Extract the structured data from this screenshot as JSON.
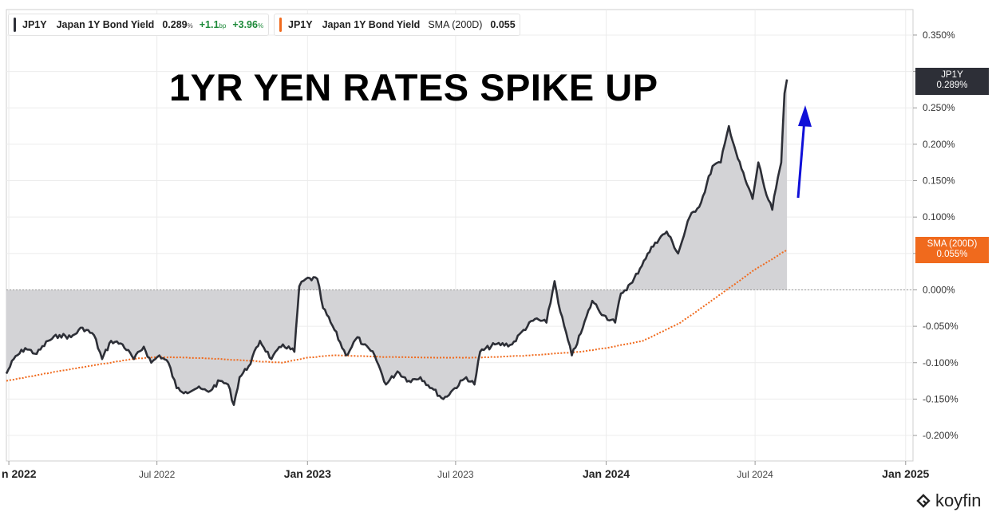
{
  "legend": {
    "series1": {
      "ticker": "JP1Y",
      "name": "Japan 1Y Bond Yield",
      "value": "0.289",
      "value_unit": "%",
      "change_bp": "+1.1",
      "change_bp_unit": "bp",
      "change_pct": "+3.96",
      "change_pct_unit": "%",
      "color": "#2d2f37"
    },
    "series2": {
      "ticker": "JP1Y",
      "name": "Japan 1Y Bond Yield",
      "indicator": "SMA (200D)",
      "value": "0.055",
      "color": "#f06a1d"
    }
  },
  "annotation": {
    "headline": "1YR YEN RATES SPIKE UP",
    "arrow_color": "#1010d8"
  },
  "price_tags": {
    "jp1y": {
      "label": "JP1Y",
      "value": "0.289%"
    },
    "sma": {
      "label": "SMA (200D)",
      "value": "0.055%"
    }
  },
  "brand": {
    "name": "koyfin"
  },
  "chart_data": {
    "type": "line",
    "x_ticks": [
      "n 2022",
      "Jul 2022",
      "Jan 2023",
      "Jul 2023",
      "Jan 2024",
      "Jul 2024",
      "Jan 2025"
    ],
    "x_ticks_bold": [
      true,
      false,
      true,
      false,
      true,
      false,
      true
    ],
    "x_tick_dates": [
      "2022-01-01",
      "2022-07-01",
      "2023-01-01",
      "2023-07-01",
      "2024-01-01",
      "2024-07-01",
      "2025-01-01"
    ],
    "xlim": [
      "2021-12-29",
      "2025-01-10"
    ],
    "y_ticks": [
      "0.350%",
      "0.300%",
      "0.250%",
      "0.200%",
      "0.150%",
      "0.100%",
      "0.050%",
      "0.000%",
      "-0.050%",
      "-0.100%",
      "-0.150%",
      "-0.200%"
    ],
    "y_tick_values": [
      0.35,
      0.3,
      0.25,
      0.2,
      0.15,
      0.1,
      0.05,
      0.0,
      -0.05,
      -0.1,
      -0.15,
      -0.2
    ],
    "ylim": [
      -0.235,
      0.385
    ],
    "grid": true,
    "area_fill_to_zero": true,
    "series": [
      {
        "name": "Japan 1Y Bond Yield",
        "color": "#2d2f37",
        "style": "solid",
        "points": [
          [
            "2021-12-29",
            -0.115
          ],
          [
            "2022-01-07",
            -0.095
          ],
          [
            "2022-01-21",
            -0.08
          ],
          [
            "2022-02-04",
            -0.088
          ],
          [
            "2022-02-18",
            -0.07
          ],
          [
            "2022-03-04",
            -0.062
          ],
          [
            "2022-03-18",
            -0.065
          ],
          [
            "2022-04-01",
            -0.052
          ],
          [
            "2022-04-15",
            -0.062
          ],
          [
            "2022-04-25",
            -0.095
          ],
          [
            "2022-05-06",
            -0.07
          ],
          [
            "2022-05-20",
            -0.075
          ],
          [
            "2022-06-03",
            -0.095
          ],
          [
            "2022-06-15",
            -0.078
          ],
          [
            "2022-06-24",
            -0.1
          ],
          [
            "2022-07-04",
            -0.09
          ],
          [
            "2022-07-15",
            -0.1
          ],
          [
            "2022-07-25",
            -0.135
          ],
          [
            "2022-08-05",
            -0.14
          ],
          [
            "2022-08-19",
            -0.135
          ],
          [
            "2022-09-02",
            -0.14
          ],
          [
            "2022-09-16",
            -0.125
          ],
          [
            "2022-09-26",
            -0.13
          ],
          [
            "2022-10-03",
            -0.158
          ],
          [
            "2022-10-10",
            -0.12
          ],
          [
            "2022-10-21",
            -0.105
          ],
          [
            "2022-11-04",
            -0.07
          ],
          [
            "2022-11-18",
            -0.095
          ],
          [
            "2022-12-02",
            -0.075
          ],
          [
            "2022-12-16",
            -0.085
          ],
          [
            "2022-12-22",
            0.005
          ],
          [
            "2022-12-30",
            0.015
          ],
          [
            "2023-01-13",
            0.015
          ],
          [
            "2023-01-20",
            -0.025
          ],
          [
            "2023-02-03",
            -0.055
          ],
          [
            "2023-02-17",
            -0.09
          ],
          [
            "2023-03-03",
            -0.065
          ],
          [
            "2023-03-10",
            -0.075
          ],
          [
            "2023-03-24",
            -0.09
          ],
          [
            "2023-04-07",
            -0.13
          ],
          [
            "2023-04-21",
            -0.112
          ],
          [
            "2023-05-05",
            -0.125
          ],
          [
            "2023-05-19",
            -0.12
          ],
          [
            "2023-06-02",
            -0.135
          ],
          [
            "2023-06-16",
            -0.15
          ],
          [
            "2023-06-30",
            -0.135
          ],
          [
            "2023-07-14",
            -0.12
          ],
          [
            "2023-07-24",
            -0.13
          ],
          [
            "2023-07-31",
            -0.085
          ],
          [
            "2023-08-18",
            -0.075
          ],
          [
            "2023-09-08",
            -0.075
          ],
          [
            "2023-09-22",
            -0.055
          ],
          [
            "2023-10-06",
            -0.04
          ],
          [
            "2023-10-20",
            -0.045
          ],
          [
            "2023-10-30",
            0.012
          ],
          [
            "2023-11-06",
            -0.03
          ],
          [
            "2023-11-20",
            -0.09
          ],
          [
            "2023-12-01",
            -0.06
          ],
          [
            "2023-12-15",
            -0.015
          ],
          [
            "2023-12-29",
            -0.035
          ],
          [
            "2024-01-12",
            -0.045
          ],
          [
            "2024-01-19",
            -0.005
          ],
          [
            "2024-02-02",
            0.01
          ],
          [
            "2024-02-16",
            0.04
          ],
          [
            "2024-03-01",
            0.065
          ],
          [
            "2024-03-15",
            0.08
          ],
          [
            "2024-03-29",
            0.05
          ],
          [
            "2024-04-12",
            0.1
          ],
          [
            "2024-04-26",
            0.12
          ],
          [
            "2024-05-10",
            0.17
          ],
          [
            "2024-05-20",
            0.175
          ],
          [
            "2024-05-30",
            0.225
          ],
          [
            "2024-06-10",
            0.18
          ],
          [
            "2024-06-21",
            0.145
          ],
          [
            "2024-06-28",
            0.125
          ],
          [
            "2024-07-05",
            0.175
          ],
          [
            "2024-07-15",
            0.13
          ],
          [
            "2024-07-22",
            0.11
          ],
          [
            "2024-07-29",
            0.155
          ],
          [
            "2024-08-02",
            0.175
          ],
          [
            "2024-08-06",
            0.27
          ],
          [
            "2024-08-09",
            0.289
          ]
        ]
      },
      {
        "name": "SMA (200D)",
        "color": "#f06a1d",
        "style": "dotted",
        "points": [
          [
            "2021-12-29",
            -0.125
          ],
          [
            "2022-03-01",
            -0.112
          ],
          [
            "2022-06-01",
            -0.095
          ],
          [
            "2022-07-01",
            -0.092
          ],
          [
            "2022-09-01",
            -0.094
          ],
          [
            "2022-12-01",
            -0.1
          ],
          [
            "2023-01-01",
            -0.093
          ],
          [
            "2023-02-01",
            -0.09
          ],
          [
            "2023-04-01",
            -0.092
          ],
          [
            "2023-06-01",
            -0.093
          ],
          [
            "2023-08-01",
            -0.093
          ],
          [
            "2023-10-01",
            -0.09
          ],
          [
            "2023-12-01",
            -0.085
          ],
          [
            "2024-01-01",
            -0.08
          ],
          [
            "2024-02-15",
            -0.07
          ],
          [
            "2024-04-01",
            -0.045
          ],
          [
            "2024-05-15",
            -0.01
          ],
          [
            "2024-07-01",
            0.028
          ],
          [
            "2024-08-09",
            0.055
          ]
        ]
      }
    ]
  }
}
